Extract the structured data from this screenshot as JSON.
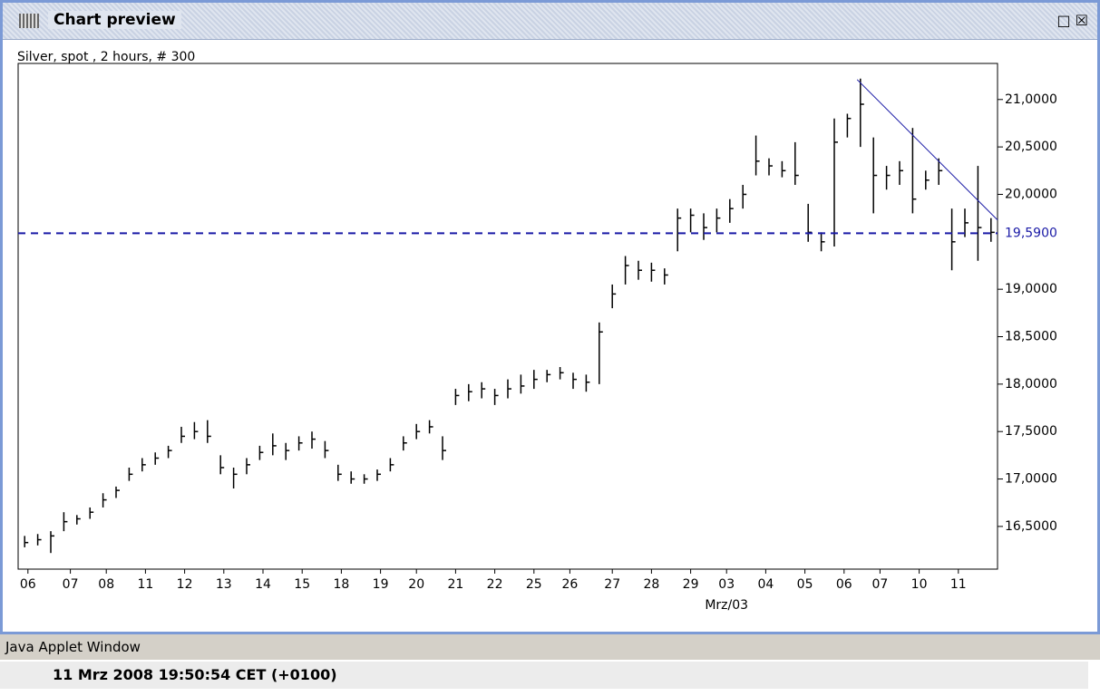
{
  "window": {
    "title": "Chart preview"
  },
  "chart_data": {
    "type": "ohlc",
    "title": "Silver, spot , 2 hours, # 300",
    "color": "#000000",
    "x": [
      2,
      6,
      10,
      14,
      18,
      22,
      26,
      30,
      34,
      38,
      42,
      46,
      50,
      54,
      58,
      62,
      66,
      70,
      74,
      78,
      82,
      86,
      90,
      94,
      98,
      102,
      106,
      110,
      114,
      118,
      122,
      126,
      130,
      134,
      138,
      142,
      146,
      150,
      154,
      158,
      162,
      166,
      170,
      174,
      178,
      182,
      186,
      190,
      194,
      198,
      202,
      206,
      210,
      214,
      218,
      222,
      226,
      230,
      234,
      238,
      242,
      246,
      250,
      254,
      258,
      262,
      266,
      270,
      274,
      278,
      282,
      286,
      290,
      294,
      298
    ],
    "high": [
      16.4,
      16.42,
      16.45,
      16.65,
      16.62,
      16.7,
      16.85,
      16.92,
      17.12,
      17.22,
      17.28,
      17.35,
      17.55,
      17.6,
      17.62,
      17.25,
      17.12,
      17.22,
      17.35,
      17.48,
      17.38,
      17.45,
      17.5,
      17.4,
      17.15,
      17.08,
      17.05,
      17.1,
      17.22,
      17.45,
      17.58,
      17.62,
      17.45,
      17.95,
      18.0,
      18.02,
      17.95,
      18.05,
      18.1,
      18.15,
      18.15,
      18.18,
      18.12,
      18.1,
      18.65,
      19.05,
      19.35,
      19.3,
      19.28,
      19.22,
      19.85,
      19.85,
      19.8,
      19.85,
      19.95,
      20.1,
      20.62,
      20.38,
      20.35,
      20.55,
      19.9,
      19.6,
      20.8,
      20.85,
      21.22,
      20.6,
      20.3,
      20.35,
      20.7,
      20.25,
      20.38,
      19.85,
      19.85,
      20.3,
      19.75
    ],
    "low": [
      16.28,
      16.3,
      16.22,
      16.45,
      16.52,
      16.58,
      16.7,
      16.8,
      16.98,
      17.08,
      17.15,
      17.22,
      17.38,
      17.42,
      17.38,
      17.05,
      16.9,
      17.05,
      17.2,
      17.25,
      17.2,
      17.3,
      17.32,
      17.22,
      16.98,
      16.95,
      16.95,
      16.98,
      17.08,
      17.3,
      17.42,
      17.48,
      17.2,
      17.78,
      17.82,
      17.85,
      17.78,
      17.85,
      17.9,
      17.95,
      18.02,
      18.05,
      17.95,
      17.92,
      18.0,
      18.8,
      19.05,
      19.1,
      19.08,
      19.05,
      19.4,
      19.6,
      19.52,
      19.6,
      19.7,
      19.85,
      20.2,
      20.2,
      20.18,
      20.1,
      19.5,
      19.4,
      19.45,
      20.6,
      20.5,
      19.8,
      20.05,
      20.1,
      19.8,
      20.05,
      20.1,
      19.2,
      19.55,
      19.3,
      19.5
    ],
    "close": [
      16.33,
      16.36,
      16.4,
      16.55,
      16.58,
      16.65,
      16.78,
      16.88,
      17.05,
      17.15,
      17.22,
      17.3,
      17.45,
      17.5,
      17.45,
      17.12,
      17.05,
      17.15,
      17.28,
      17.35,
      17.3,
      17.38,
      17.42,
      17.3,
      17.05,
      17.0,
      17.0,
      17.05,
      17.15,
      17.38,
      17.5,
      17.55,
      17.3,
      17.88,
      17.92,
      17.95,
      17.88,
      17.95,
      17.98,
      18.05,
      18.1,
      18.12,
      18.05,
      18.02,
      18.55,
      18.95,
      19.25,
      19.2,
      19.2,
      19.15,
      19.75,
      19.78,
      19.65,
      19.75,
      19.85,
      20.0,
      20.35,
      20.3,
      20.25,
      20.2,
      19.6,
      19.5,
      20.55,
      20.8,
      20.95,
      20.2,
      20.2,
      20.25,
      19.95,
      20.15,
      20.25,
      19.5,
      19.7,
      19.65,
      19.6
    ],
    "xlim": [
      0,
      300
    ],
    "ylim": [
      16.05,
      21.38
    ],
    "xticks": [
      {
        "value": 3,
        "label": "06"
      },
      {
        "value": 16,
        "label": "07"
      },
      {
        "value": 27,
        "label": "08"
      },
      {
        "value": 39,
        "label": "11"
      },
      {
        "value": 51,
        "label": "12"
      },
      {
        "value": 63,
        "label": "13"
      },
      {
        "value": 75,
        "label": "14"
      },
      {
        "value": 87,
        "label": "15"
      },
      {
        "value": 99,
        "label": "18"
      },
      {
        "value": 111,
        "label": "19"
      },
      {
        "value": 122,
        "label": "20"
      },
      {
        "value": 134,
        "label": "21"
      },
      {
        "value": 146,
        "label": "22"
      },
      {
        "value": 158,
        "label": "25"
      },
      {
        "value": 169,
        "label": "26"
      },
      {
        "value": 182,
        "label": "27"
      },
      {
        "value": 194,
        "label": "28"
      },
      {
        "value": 206,
        "label": "29"
      },
      {
        "value": 217,
        "label": "03"
      },
      {
        "value": 229,
        "label": "04"
      },
      {
        "value": 241,
        "label": "05"
      },
      {
        "value": 253,
        "label": "06"
      },
      {
        "value": 264,
        "label": "07"
      },
      {
        "value": 276,
        "label": "10"
      },
      {
        "value": 288,
        "label": "11"
      }
    ],
    "x_sublabel": {
      "value": 217,
      "label": "Mrz/03"
    },
    "yticks": [
      {
        "value": 16.5,
        "label": "16,5000"
      },
      {
        "value": 17,
        "label": "17,0000"
      },
      {
        "value": 17.5,
        "label": "17,5000"
      },
      {
        "value": 18,
        "label": "18,0000"
      },
      {
        "value": 18.5,
        "label": "18,5000"
      },
      {
        "value": 19,
        "label": "19,0000"
      },
      {
        "value": 20,
        "label": "20,0000"
      },
      {
        "value": 20.5,
        "label": "20,5000"
      },
      {
        "value": 21,
        "label": "21,0000"
      }
    ],
    "reference_line": {
      "value": 19.59,
      "label": "19,5900",
      "color": "#1a1aa6"
    },
    "trendline": {
      "x": [
        257,
        300
      ],
      "y": [
        21.21,
        19.73
      ],
      "color": "#1a1aa6"
    }
  },
  "applet_label": "Java Applet Window",
  "status": "11 Mrz 2008 19:50:54  CET (+0100)"
}
